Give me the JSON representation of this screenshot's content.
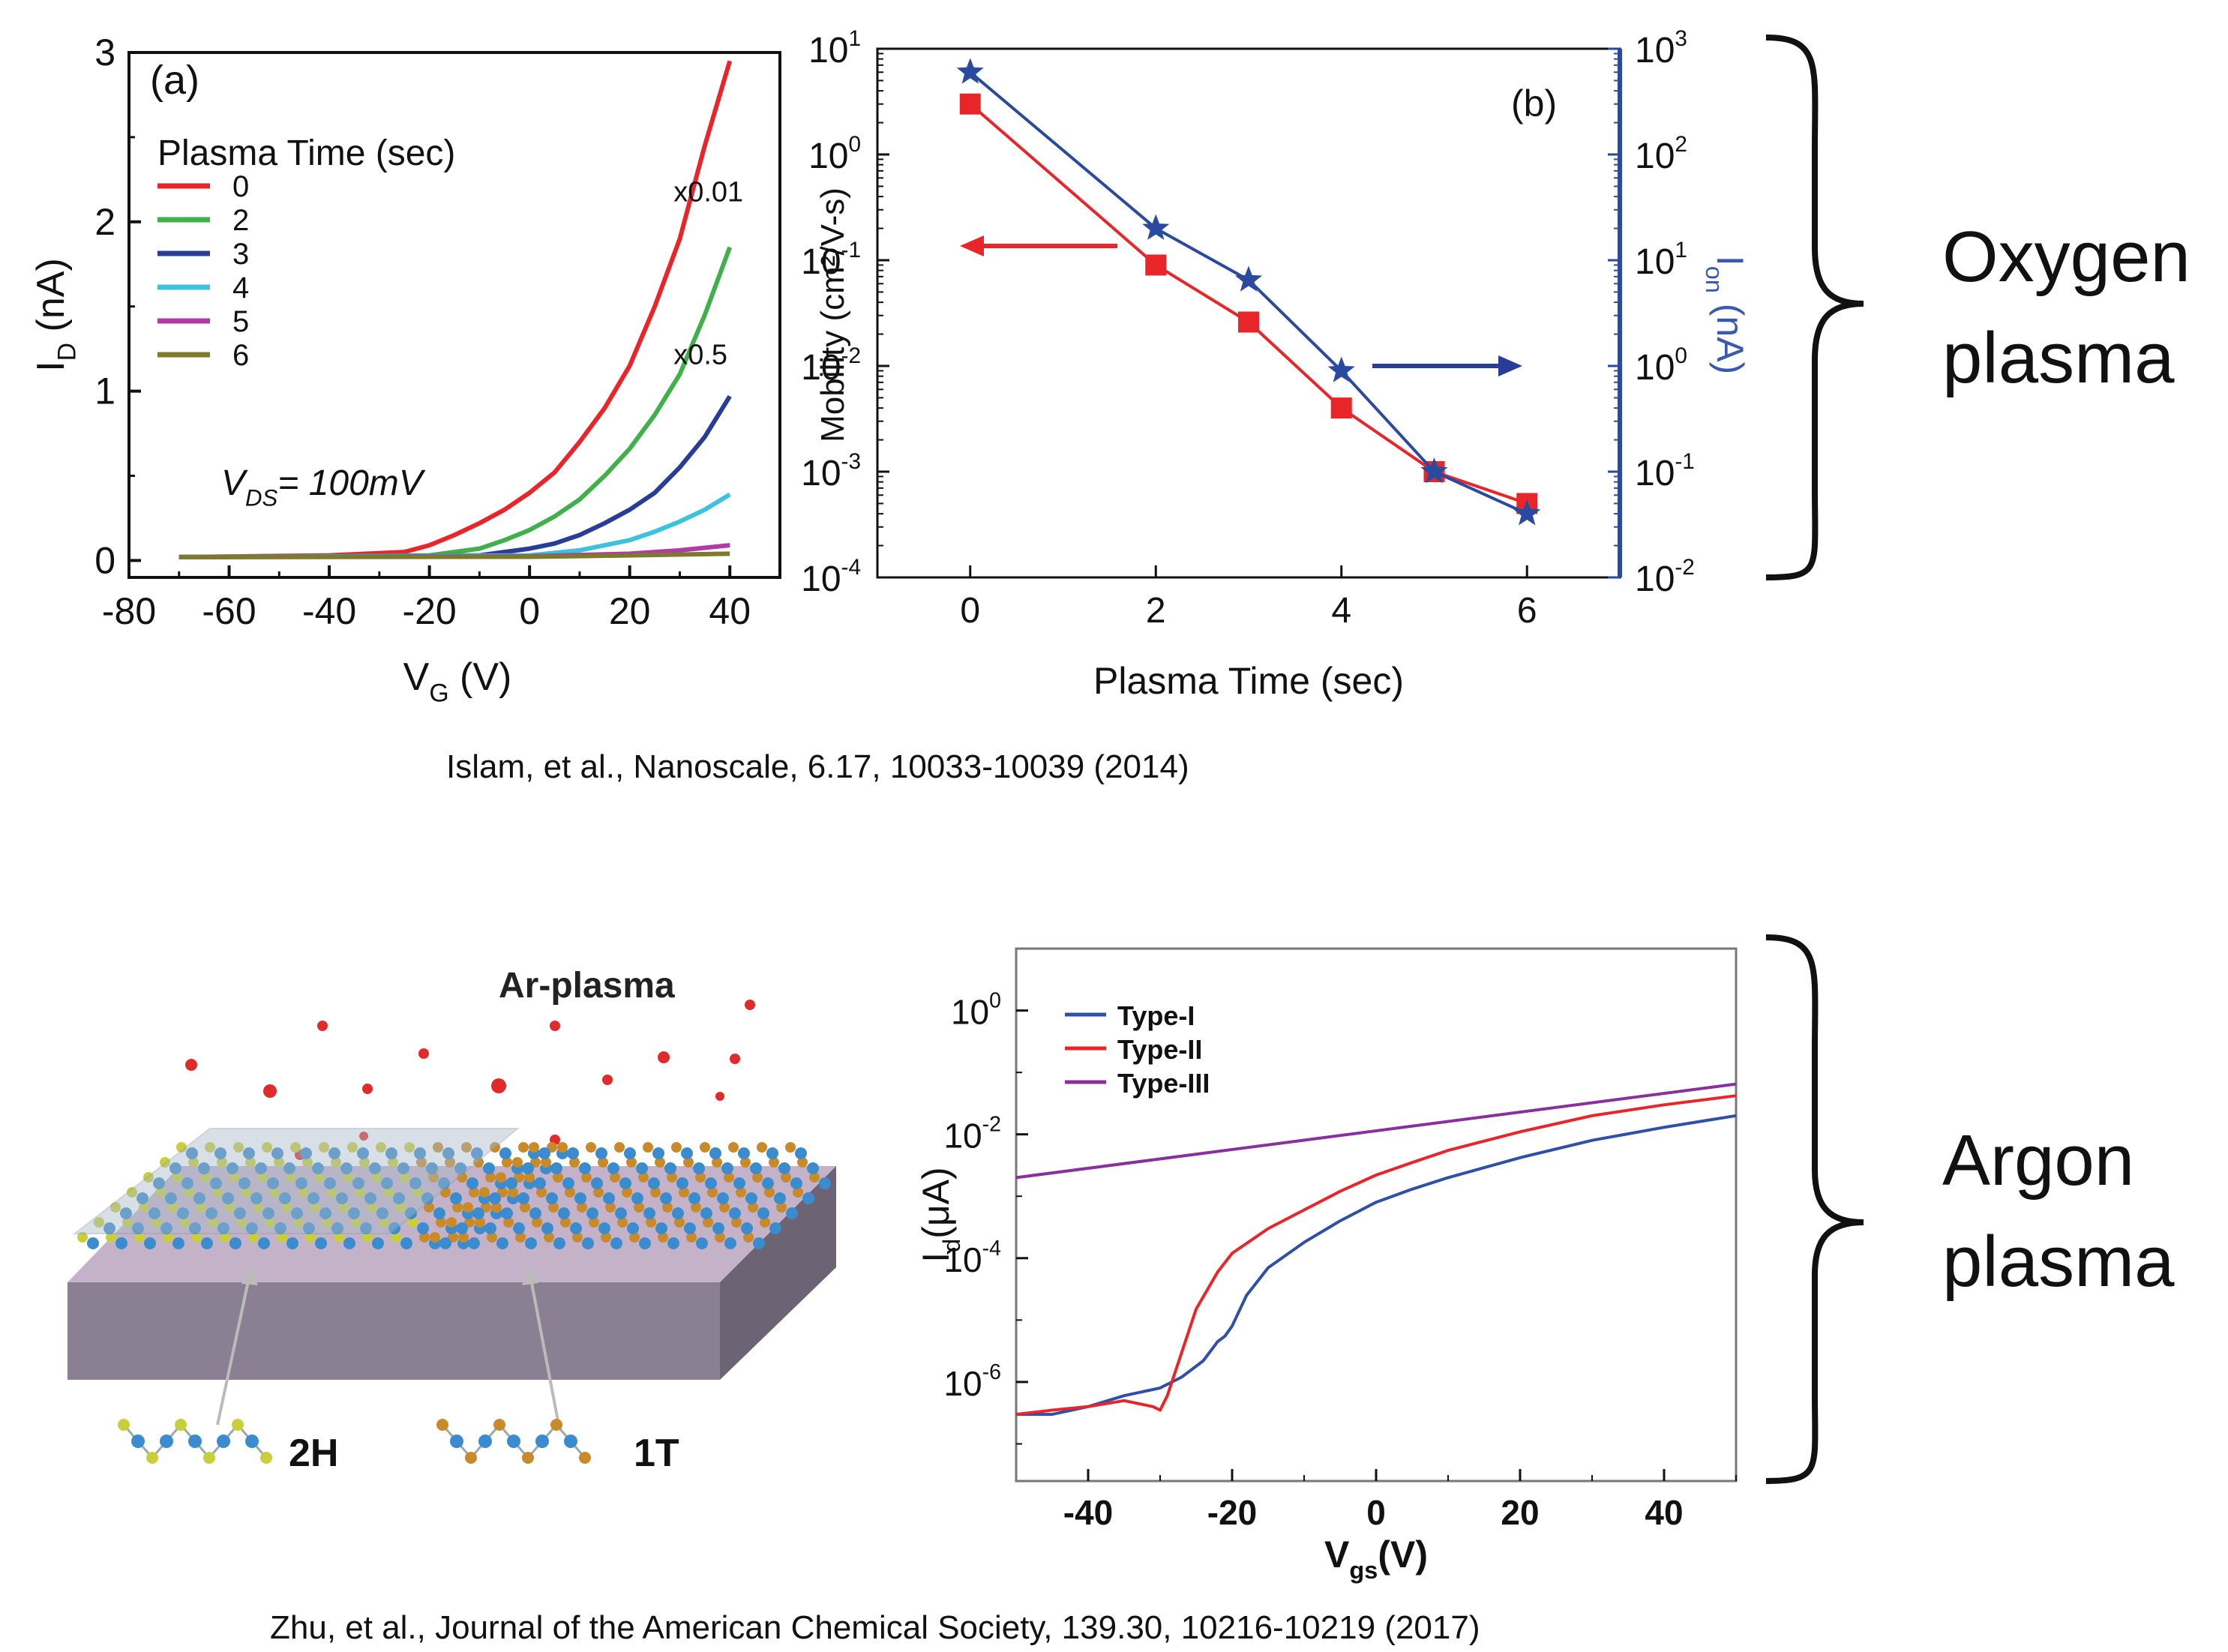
{
  "captions": {
    "top": "Islam, et al.,  Nanoscale, 6.17, 10033-10039 (2014)",
    "bottom": "Zhu, et al., Journal of the American Chemical Society, 139.30, 10216-10219 (2017)"
  },
  "side_labels": {
    "oxygen_line1": "Oxygen",
    "oxygen_line2": "plasma",
    "argon_line1": "Argon",
    "argon_line2": "plasma"
  },
  "schematic": {
    "title": "Ar-plasma",
    "label_2h": "2H",
    "label_1t": "1T",
    "colors": {
      "substrate": "#8a7f93",
      "plasma": "#e02b2b",
      "sulfur_2h": "#c9cf3a",
      "sulfur_1t": "#c98a2a",
      "metal": "#3a8ccf"
    }
  },
  "chart_data": [
    {
      "type": "line",
      "panel_label": "(a)",
      "xlabel_main": "V",
      "xlabel_sub": "G",
      "xlabel_unit": " (V)",
      "ylabel_main": "I",
      "ylabel_sub": "D",
      "ylabel_unit": " (nA)",
      "xlim": [
        -80,
        50
      ],
      "ylim": [
        -0.1,
        3.0
      ],
      "x_ticks": [
        -80,
        -60,
        -40,
        -20,
        0,
        20,
        40
      ],
      "y_ticks": [
        0,
        1,
        2,
        3
      ],
      "legend_title": "Plasma Time (sec)",
      "legend_position": "top-left",
      "annotations": [
        {
          "text": "x0.01",
          "x": 40,
          "y": 2.12
        },
        {
          "text": "x0.5",
          "x": 40,
          "y": 1.16
        }
      ],
      "vds": {
        "main": "V",
        "sub": "DS",
        "rest": "= 100mV"
      },
      "series": [
        {
          "name": "0",
          "color": "#e8262a",
          "x": [
            -70,
            -40,
            -25,
            -20,
            -15,
            -10,
            -5,
            0,
            5,
            10,
            15,
            20,
            25,
            30,
            35,
            40
          ],
          "y": [
            0.02,
            0.03,
            0.05,
            0.09,
            0.15,
            0.22,
            0.3,
            0.4,
            0.52,
            0.7,
            0.9,
            1.15,
            1.5,
            1.9,
            2.45,
            2.95
          ]
        },
        {
          "name": "2",
          "color": "#3fb04a",
          "x": [
            -70,
            -20,
            -10,
            -5,
            0,
            5,
            10,
            15,
            20,
            25,
            30,
            35,
            40
          ],
          "y": [
            0.02,
            0.03,
            0.07,
            0.12,
            0.18,
            0.26,
            0.36,
            0.5,
            0.66,
            0.86,
            1.1,
            1.45,
            1.85
          ]
        },
        {
          "name": "3",
          "color": "#283d97",
          "x": [
            -70,
            -10,
            0,
            5,
            10,
            15,
            20,
            25,
            30,
            35,
            40
          ],
          "y": [
            0.02,
            0.03,
            0.07,
            0.1,
            0.15,
            0.22,
            0.3,
            0.4,
            0.55,
            0.73,
            0.97
          ]
        },
        {
          "name": "4",
          "color": "#3cc2de",
          "x": [
            -70,
            0,
            10,
            20,
            25,
            30,
            35,
            40
          ],
          "y": [
            0.02,
            0.03,
            0.06,
            0.12,
            0.17,
            0.23,
            0.3,
            0.39
          ]
        },
        {
          "name": "5",
          "color": "#b23aa8",
          "x": [
            -70,
            0,
            20,
            30,
            40
          ],
          "y": [
            0.02,
            0.025,
            0.04,
            0.06,
            0.09
          ]
        },
        {
          "name": "6",
          "color": "#7d7a2e",
          "x": [
            -70,
            0,
            20,
            40
          ],
          "y": [
            0.02,
            0.022,
            0.03,
            0.04
          ]
        }
      ]
    },
    {
      "type": "line",
      "panel_label": "(b)",
      "xlabel": "Plasma Time (sec)",
      "ylabel_left": "Mobility (cm²/V-s)",
      "ylabel_right_main": "I",
      "ylabel_right_sub": "on",
      "ylabel_right_unit": " (nA)",
      "xlim": [
        -1,
        7
      ],
      "x_ticks": [
        0,
        2,
        4,
        6
      ],
      "y_left_scale": "log",
      "y_left_exp": [
        -4,
        1
      ],
      "y_left_ticks": [
        "10",
        "10",
        "10",
        "10",
        "10",
        "10"
      ],
      "y_left_tick_exp": [
        "-4",
        "-3",
        "-2",
        "-1",
        "0",
        "1"
      ],
      "y_right_scale": "log",
      "y_right_exp": [
        -2,
        3
      ],
      "y_right_tick_exp": [
        "-2",
        "-1",
        "0",
        "1",
        "2",
        "3"
      ],
      "series": [
        {
          "name": "Mobility",
          "axis": "left",
          "marker": "square",
          "color": "#e8262a",
          "x": [
            0,
            2,
            3,
            4,
            5,
            6
          ],
          "y": [
            3.0,
            0.09,
            0.026,
            0.004,
            0.001,
            0.0005
          ]
        },
        {
          "name": "Ion",
          "axis": "right",
          "marker": "star",
          "color": "#2a4aa0",
          "x": [
            0,
            2,
            3,
            4,
            5,
            6
          ],
          "y": [
            600,
            20,
            6.5,
            0.9,
            0.1,
            0.04
          ]
        }
      ],
      "arrows": [
        {
          "direction": "left",
          "color": "#e8262a"
        },
        {
          "direction": "right",
          "color": "#283d97"
        }
      ]
    },
    {
      "type": "line",
      "xlabel_main": "V",
      "xlabel_sub": "gs",
      "xlabel_unit": "(V)",
      "ylabel_main": "I",
      "ylabel_sub": "d",
      "ylabel_unit": "(μA)",
      "xlim": [
        -50,
        50
      ],
      "x_ticks": [
        -40,
        -20,
        0,
        20,
        40
      ],
      "y_scale": "log",
      "y_exp": [
        -7.6,
        1.0
      ],
      "y_tick_exp": [
        "0",
        "-2",
        "-4",
        "-6"
      ],
      "legend_position": "top-left",
      "series": [
        {
          "name": "Type-I",
          "color": "#2f4fa8",
          "x": [
            -50,
            -45,
            -40,
            -35,
            -30,
            -27,
            -24,
            -22,
            -21,
            -20,
            -18,
            -15,
            -10,
            -5,
            0,
            5,
            10,
            20,
            30,
            40,
            50
          ],
          "y": [
            3e-07,
            3e-07,
            4e-07,
            6e-07,
            8e-07,
            1.2e-06,
            2.2e-06,
            4.5e-06,
            5.5e-06,
            8e-06,
            2.5e-05,
            7e-05,
            0.00018,
            0.0004,
            0.0008,
            0.0013,
            0.002,
            0.0042,
            0.008,
            0.013,
            0.02
          ]
        },
        {
          "name": "Type-II",
          "color": "#e8262a",
          "x": [
            -50,
            -45,
            -40,
            -35,
            -31,
            -30,
            -29,
            -27,
            -25,
            -22,
            -20,
            -15,
            -10,
            -5,
            0,
            5,
            10,
            20,
            30,
            40,
            50
          ],
          "y": [
            3e-07,
            3.5e-07,
            4e-07,
            5e-07,
            4e-07,
            3.5e-07,
            6e-07,
            3e-06,
            1.5e-05,
            6e-05,
            0.00012,
            0.0003,
            0.0006,
            0.0012,
            0.0022,
            0.0035,
            0.0055,
            0.011,
            0.02,
            0.03,
            0.042
          ]
        },
        {
          "name": "Type-III",
          "color": "#8a2f9e",
          "x": [
            -50,
            50
          ],
          "y": [
            0.002,
            0.065
          ]
        }
      ]
    }
  ]
}
